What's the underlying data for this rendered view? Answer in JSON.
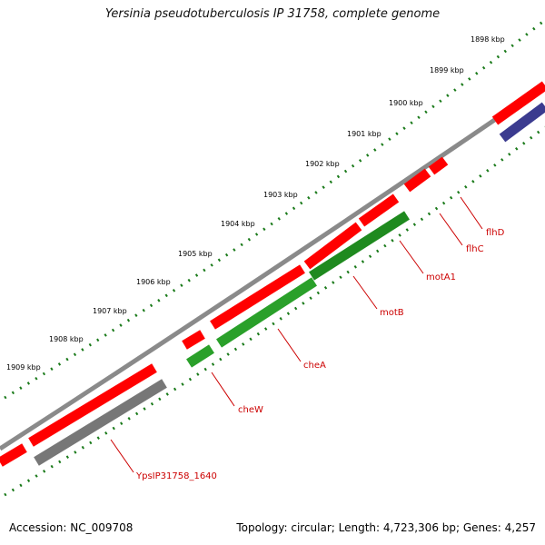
{
  "title": "Yersinia pseudotuberculosis IP 31758, complete genome",
  "colors": {
    "background": "#ffffff",
    "backbone": "#888888",
    "forward_gene": "#ff0000",
    "reverse_gene_green": "#2aa02a",
    "reverse_gene_gray": "#777777",
    "reverse_gene_purple": "#3b3b8f",
    "tick": "#1a7a1a",
    "label": "#cc0000"
  },
  "scale_ticks": [
    "1898 kbp",
    "1899 kbp",
    "1900 kbp",
    "1901 kbp",
    "1902 kbp",
    "1903 kbp",
    "1904 kbp",
    "1905 kbp",
    "1906 kbp",
    "1907 kbp",
    "1908 kbp",
    "1909 kbp"
  ],
  "gene_labels": [
    "flhD",
    "flhC",
    "motA1",
    "motB",
    "cheA",
    "cheW",
    "YpsIP31758_1640"
  ],
  "footer": {
    "accession": "Accession: NC_009708",
    "summary": "Topology: circular; Length: 4,723,306 bp; Genes: 4,257"
  }
}
